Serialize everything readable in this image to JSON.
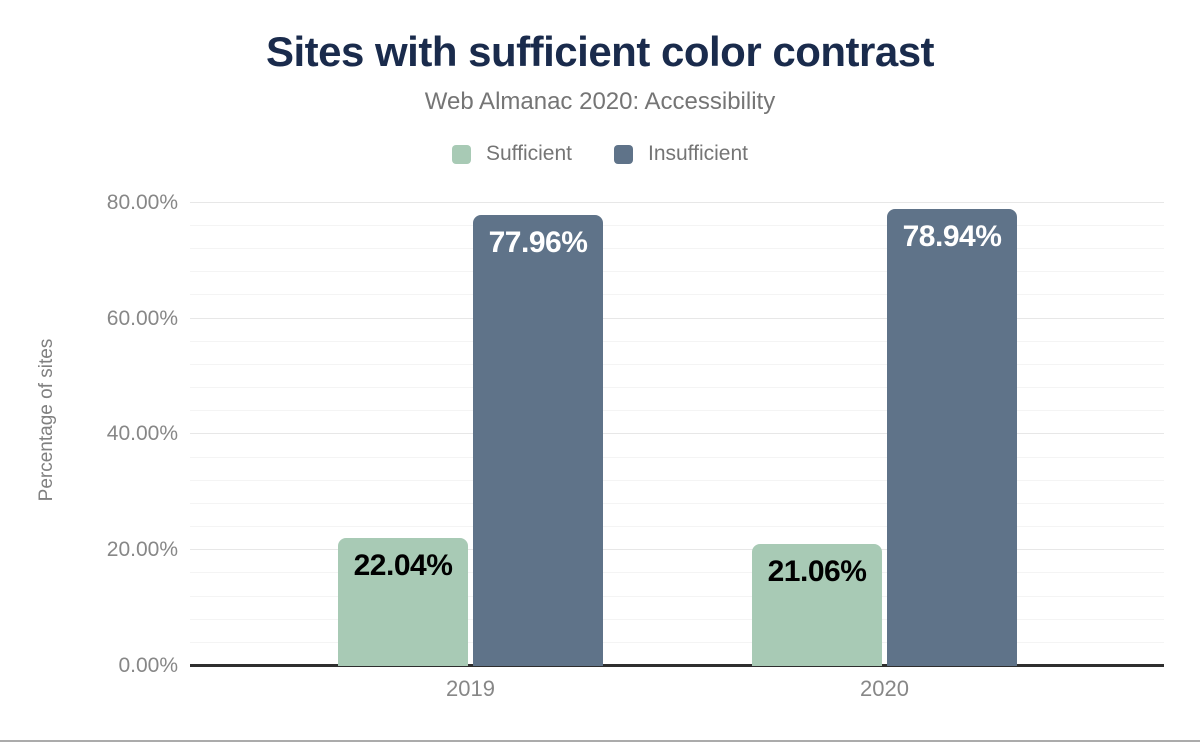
{
  "chart_data": {
    "type": "bar",
    "title": "Sites with sufficient color contrast",
    "subtitle": "Web Almanac 2020: Accessibility",
    "ylabel": "Percentage of sites",
    "xlabel": "",
    "categories": [
      "2019",
      "2020"
    ],
    "series": [
      {
        "name": "Sufficient",
        "color": "#a8cab5",
        "label_color": "#000000",
        "values": [
          22.04,
          21.06
        ],
        "labels": [
          "22.04%",
          "21.06%"
        ]
      },
      {
        "name": "Insufficient",
        "color": "#5f7389",
        "label_color": "#ffffff",
        "values": [
          77.96,
          78.94
        ],
        "labels": [
          "77.96%",
          "78.94%"
        ]
      }
    ],
    "y_ticks": [
      {
        "value": 0,
        "label": "0.00%"
      },
      {
        "value": 20,
        "label": "20.00%"
      },
      {
        "value": 40,
        "label": "40.00%"
      },
      {
        "value": 60,
        "label": "60.00%"
      },
      {
        "value": 80,
        "label": "80.00%"
      }
    ],
    "ylim": [
      0,
      82.2
    ],
    "grid": {
      "on": true,
      "minor_step": 4,
      "major_step": 20,
      "max_line": 80,
      "minor_color": "#f4f4f4",
      "major_color": "#e7e7e7"
    },
    "legend_position": "top"
  },
  "colors": {
    "title": "#1a2b4c",
    "subtitle": "#757575",
    "tick_text": "#878787",
    "axis_line": "#2e2e2e",
    "bottom_rule": "#ababab"
  }
}
